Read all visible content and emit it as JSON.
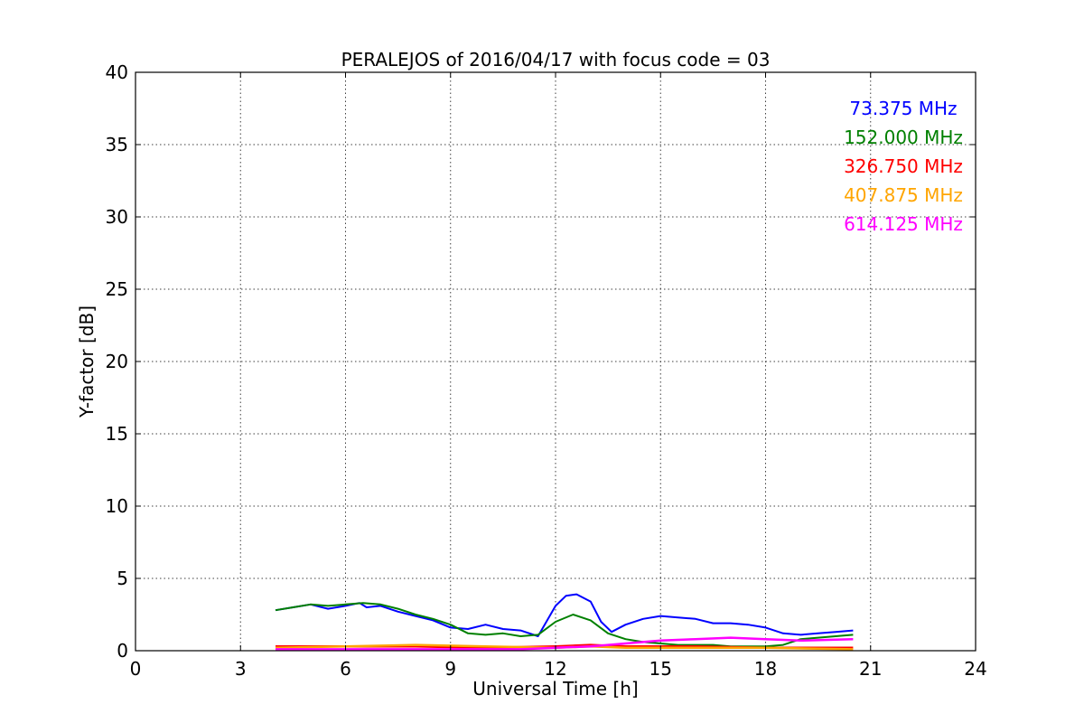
{
  "chart_data": {
    "type": "line",
    "title": "PERALEJOS of 2016/04/17 with focus code = 03",
    "xlabel": "Universal Time [h]",
    "ylabel": "Y-factor [dB]",
    "xlim": [
      0,
      24
    ],
    "ylim": [
      0,
      40
    ],
    "xticks": [
      0,
      3,
      6,
      9,
      12,
      15,
      18,
      21,
      24
    ],
    "yticks": [
      0,
      5,
      10,
      15,
      20,
      25,
      30,
      35,
      40
    ],
    "grid": true,
    "legend_position": "top-right",
    "series": [
      {
        "name": "73.375 MHz",
        "color": "#0000ff",
        "x": [
          4.0,
          4.5,
          5.0,
          5.5,
          6.0,
          6.4,
          6.6,
          7.0,
          7.5,
          8.0,
          8.5,
          9.0,
          9.5,
          10.0,
          10.5,
          11.0,
          11.5,
          12.0,
          12.3,
          12.6,
          13.0,
          13.3,
          13.6,
          14.0,
          14.5,
          15.0,
          15.5,
          16.0,
          16.5,
          17.0,
          17.5,
          18.0,
          18.5,
          19.0,
          19.5,
          20.0,
          20.5
        ],
        "y": [
          2.8,
          3.0,
          3.2,
          2.9,
          3.1,
          3.3,
          3.0,
          3.1,
          2.7,
          2.4,
          2.1,
          1.6,
          1.5,
          1.8,
          1.5,
          1.4,
          1.0,
          3.1,
          3.8,
          3.9,
          3.4,
          2.0,
          1.3,
          1.8,
          2.2,
          2.4,
          2.3,
          2.2,
          1.9,
          1.9,
          1.8,
          1.6,
          1.2,
          1.1,
          1.2,
          1.3,
          1.4
        ]
      },
      {
        "name": "152.000 MHz",
        "color": "#008000",
        "x": [
          4.0,
          4.5,
          5.0,
          5.5,
          6.0,
          6.5,
          7.0,
          7.5,
          8.0,
          8.5,
          9.0,
          9.5,
          10.0,
          10.5,
          11.0,
          11.5,
          12.0,
          12.5,
          13.0,
          13.5,
          14.0,
          14.5,
          15.0,
          15.5,
          16.0,
          16.5,
          17.0,
          17.5,
          18.0,
          18.5,
          19.0,
          19.5,
          20.0,
          20.5
        ],
        "y": [
          2.8,
          3.0,
          3.2,
          3.1,
          3.2,
          3.3,
          3.2,
          2.9,
          2.5,
          2.2,
          1.8,
          1.2,
          1.1,
          1.2,
          1.0,
          1.1,
          2.0,
          2.5,
          2.1,
          1.2,
          0.8,
          0.6,
          0.5,
          0.4,
          0.4,
          0.4,
          0.3,
          0.3,
          0.3,
          0.4,
          0.8,
          0.9,
          1.0,
          1.1
        ]
      },
      {
        "name": "326.750 MHz",
        "color": "#ff0000",
        "x": [
          4.0,
          6.0,
          8.0,
          10.0,
          12.0,
          13.0,
          14.0,
          16.0,
          18.0,
          20.5
        ],
        "y": [
          0.3,
          0.3,
          0.3,
          0.2,
          0.3,
          0.4,
          0.3,
          0.3,
          0.2,
          0.2
        ]
      },
      {
        "name": "407.875 MHz",
        "color": "#ffa500",
        "x": [
          4.0,
          6.0,
          8.0,
          10.0,
          12.0,
          13.0,
          14.0,
          16.0,
          18.0,
          20.5
        ],
        "y": [
          0.2,
          0.3,
          0.4,
          0.3,
          0.2,
          0.3,
          0.2,
          0.2,
          0.2,
          0.1
        ]
      },
      {
        "name": "614.125 MHz",
        "color": "#ff00ff",
        "x": [
          4.0,
          6.0,
          8.0,
          10.0,
          11.0,
          12.0,
          13.0,
          14.0,
          15.0,
          16.0,
          17.0,
          18.0,
          19.0,
          20.5
        ],
        "y": [
          0.1,
          0.1,
          0.1,
          0.1,
          0.1,
          0.2,
          0.3,
          0.5,
          0.7,
          0.8,
          0.9,
          0.8,
          0.7,
          0.8
        ]
      }
    ]
  }
}
